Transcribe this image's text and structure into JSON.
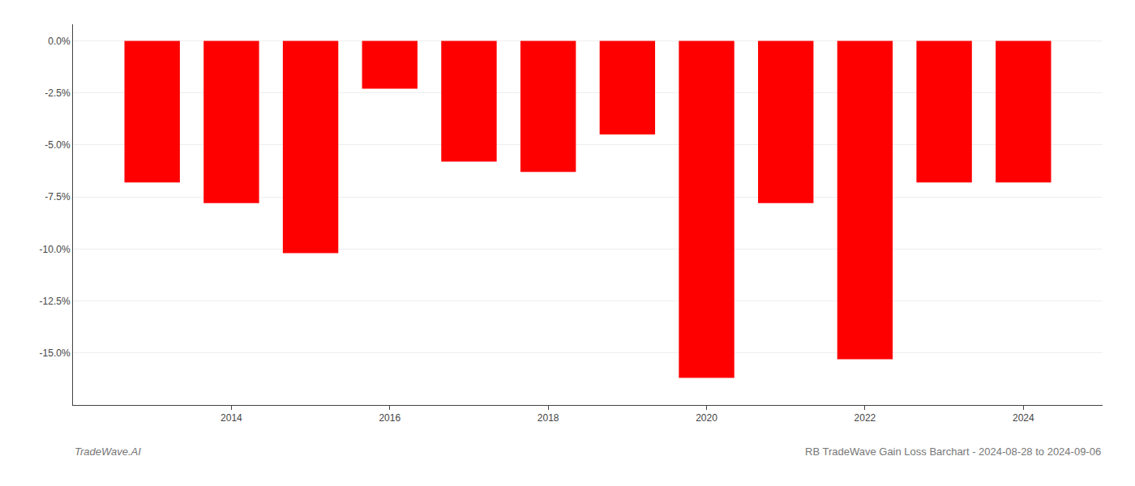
{
  "chart_data": {
    "type": "bar",
    "x": [
      2013,
      2014,
      2015,
      2016,
      2017,
      2018,
      2019,
      2020,
      2021,
      2022,
      2023,
      2024
    ],
    "values": [
      -0.068,
      -0.078,
      -0.102,
      -0.023,
      -0.058,
      -0.063,
      -0.045,
      -0.162,
      -0.078,
      -0.153,
      -0.068,
      -0.068
    ],
    "color": "#ff0000",
    "xlim": [
      2012,
      2025
    ],
    "xticks": [
      2014,
      2016,
      2018,
      2020,
      2022,
      2024
    ],
    "ylim": [
      -0.175,
      0.008
    ],
    "yticks": [
      {
        "value": 0.0,
        "label": "0.0%"
      },
      {
        "value": -0.025,
        "label": "-2.5%"
      },
      {
        "value": -0.05,
        "label": "-5.0%"
      },
      {
        "value": -0.075,
        "label": "-7.5%"
      },
      {
        "value": -0.1,
        "label": "-10.0%"
      },
      {
        "value": -0.125,
        "label": "-12.5%"
      },
      {
        "value": -0.15,
        "label": "-15.0%"
      }
    ],
    "grid": true,
    "annotations": [
      "TradeWave.AI",
      "RB TradeWave Gain Loss Barchart - 2024-08-28 to 2024-09-06"
    ]
  }
}
